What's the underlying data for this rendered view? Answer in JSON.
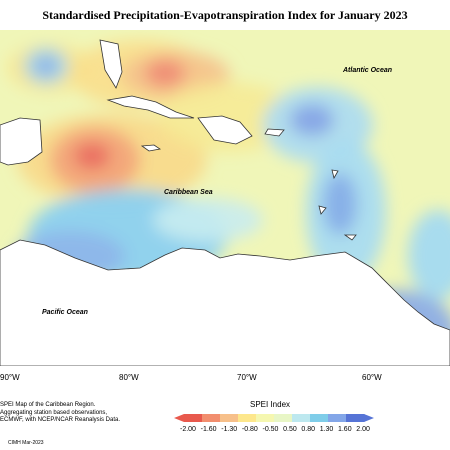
{
  "title": "Standardised Precipitation-Evapotranspiration Index for January 2023",
  "map_labels": {
    "atlantic": "Atlantic Ocean",
    "caribbean": "Caribbean Sea",
    "pacific": "Pacific Ocean"
  },
  "longitude_labels": [
    "90°W",
    "80°W",
    "70°W",
    "60°W"
  ],
  "legend": {
    "title": "SPEI Index",
    "ticks": [
      "-2.00",
      "-1.60",
      "-1.30",
      "-0.80",
      "-0.50",
      "0.50",
      "0.80",
      "1.30",
      "1.60",
      "2.00"
    ],
    "colors": [
      "#e8594d",
      "#f28e6e",
      "#f7c08a",
      "#fde78c",
      "#f5f7b0",
      "#e8f6c6",
      "#bde8ef",
      "#7fcde9",
      "#83a6e8",
      "#5674d6"
    ]
  },
  "note": [
    "SPEI Map of the Caribbean Region.",
    "Aggregating station based observations,",
    "ECMWF, with NCEP/NCAR Reanalysis Data."
  ],
  "credit": "CIMH Mar-2023"
}
